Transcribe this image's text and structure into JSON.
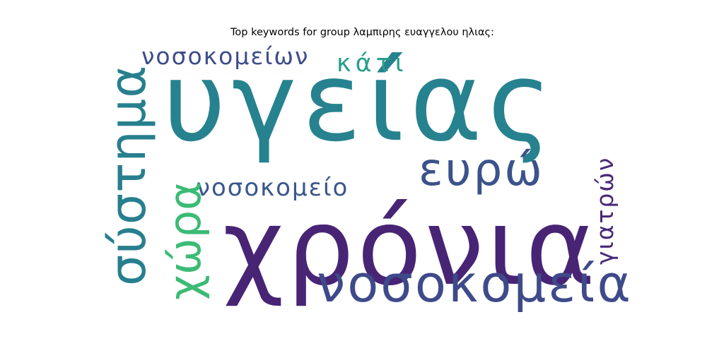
{
  "title": "Top keywords for group λαμπιρης ευαγγελου ηλιας:",
  "words": [
    {
      "text": "υγείας",
      "color": "#26828e"
    },
    {
      "text": "χρόνια",
      "color": "#482475"
    },
    {
      "text": "νοσοκομεία",
      "color": "#3e4a89"
    },
    {
      "text": "σύστημα",
      "color": "#277f8e"
    },
    {
      "text": "ευρώ",
      "color": "#3b528b"
    },
    {
      "text": "νοσοκομείων",
      "color": "#3e4c8a"
    },
    {
      "text": "νοσοκομείο",
      "color": "#39568c"
    },
    {
      "text": "χώρα",
      "color": "#3bbb75"
    },
    {
      "text": "κάτι",
      "color": "#2a9d8a"
    },
    {
      "text": "γιατρών",
      "color": "#482878"
    }
  ]
}
